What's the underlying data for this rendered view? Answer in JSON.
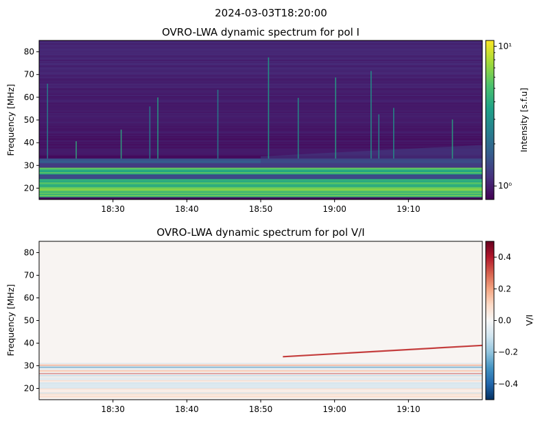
{
  "figure_title": "2024-03-03T18:20:00",
  "chart_data": [
    {
      "type": "heatmap",
      "title": "OVRO-LWA dynamic spectrum for pol I",
      "xlabel": "",
      "ylabel": "Frequency [MHz]",
      "x_tick_labels": [
        "18:30",
        "18:40",
        "18:50",
        "19:00",
        "19:10"
      ],
      "x_range": [
        "18:20",
        "19:20"
      ],
      "y_ticks": [
        20,
        30,
        40,
        50,
        60,
        70,
        80
      ],
      "ylim": [
        15,
        85
      ],
      "colorbar": {
        "label": "Intensity [s.f.u]",
        "scale": "log",
        "range": [
          0.8,
          11
        ],
        "tick_labels": [
          {
            "value": 1,
            "label": "10⁰"
          },
          {
            "value": 10,
            "label": "10¹"
          }
        ],
        "colormap": [
          "#440154",
          "#46327e",
          "#365c8d",
          "#277f8e",
          "#1fa187",
          "#4ac16d",
          "#a0da39",
          "#fde725"
        ]
      },
      "features": {
        "bright_bands_mhz": [
          [
            16,
            24
          ],
          [
            26,
            29
          ]
        ],
        "background_level": 0.95,
        "burst_times": [
          "18:21",
          "18:25",
          "18:31",
          "18:35",
          "18:36",
          "18:44",
          "18:51",
          "18:55",
          "19:00",
          "19:05",
          "19:06",
          "19:08",
          "19:16"
        ]
      }
    },
    {
      "type": "heatmap",
      "title": "OVRO-LWA dynamic spectrum for pol V/I",
      "xlabel": "",
      "ylabel": "Frequency [MHz]",
      "x_tick_labels": [
        "18:30",
        "18:40",
        "18:50",
        "19:00",
        "19:10"
      ],
      "x_range": [
        "18:20",
        "19:20"
      ],
      "y_ticks": [
        20,
        30,
        40,
        50,
        60,
        70,
        80
      ],
      "ylim": [
        15,
        85
      ],
      "colorbar": {
        "label": "V/I",
        "scale": "linear",
        "range": [
          -0.5,
          0.5
        ],
        "ticks": [
          -0.4,
          -0.2,
          0.0,
          0.2,
          0.4
        ],
        "tick_labels": [
          "−0.4",
          "−0.2",
          "0.0",
          "0.2",
          "0.4"
        ],
        "colormap": [
          "#053061",
          "#2166ac",
          "#4393c3",
          "#92c5de",
          "#d1e5f0",
          "#f7f7f7",
          "#fddbc7",
          "#f4a582",
          "#d6604d",
          "#b2182b",
          "#67001f"
        ]
      },
      "features": {
        "noisy_band_mhz": [
          16,
          31
        ],
        "drifting_emission": {
          "start_time": "18:53",
          "end_time": "19:20",
          "start_mhz": 34,
          "end_mhz": 39,
          "value": 0.35
        }
      }
    }
  ]
}
